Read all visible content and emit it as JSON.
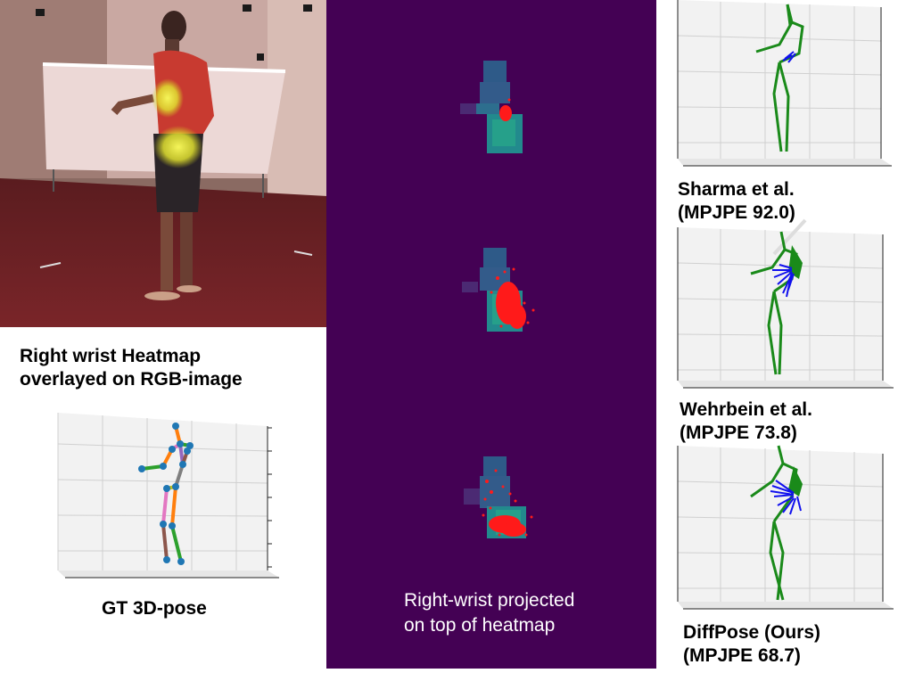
{
  "rgb_panel": {
    "caption_line1": "Right wrist Heatmap",
    "caption_line2": "overlayed on RGB-image"
  },
  "gt_panel": {
    "caption": "GT 3D-pose"
  },
  "heatmap_panel": {
    "caption_line1": "Right-wrist projected",
    "caption_line2": "on top of heatmap",
    "background": "#440154"
  },
  "methods": [
    {
      "name": "Sharma et al.",
      "score": "(MPJPE 92.0)"
    },
    {
      "name": "Wehrbein et al.",
      "score": "(MPJPE 73.8)"
    },
    {
      "name": "DiffPose (Ours)",
      "score": "(MPJPE 68.7)"
    }
  ],
  "colors": {
    "skeleton": "#1a8a1a",
    "samples": "#1010ee",
    "projection": "#ff0000",
    "heat_low": "#3b528b",
    "heat_high": "#21918c"
  }
}
